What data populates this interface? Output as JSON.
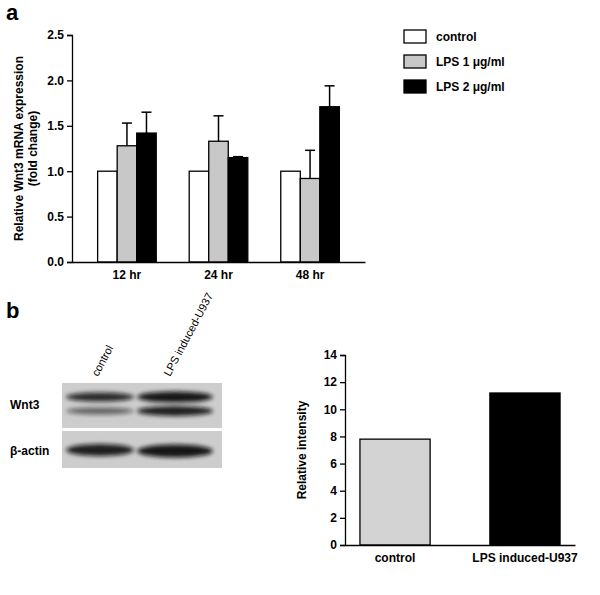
{
  "chart_data": [
    {
      "type": "bar",
      "title": "a",
      "y_label": [
        "Relative Wnt3 mRNA expression",
        "(fold change)"
      ],
      "categories": [
        "12 hr",
        "24 hr",
        "48 hr"
      ],
      "series": [
        {
          "name": "control",
          "color": "#ffffff",
          "values": [
            1,
            1,
            1
          ]
        },
        {
          "name": "LPS 1 μg/ml",
          "color": "#c8c8c8",
          "values": [
            1.28,
            1.33,
            0.92
          ],
          "errors": [
            0.25,
            0.28,
            0.31
          ]
        },
        {
          "name": "LPS 2 μg/ml",
          "color": "#000000",
          "values": [
            1.42,
            1.15,
            1.71
          ],
          "errors": [
            0.23,
            0.01,
            0.23
          ]
        }
      ],
      "ylim": [
        0,
        2.5
      ],
      "yticks": [
        {
          "value": 0,
          "label": "0.0"
        },
        {
          "value": 0.5,
          "label": "0.5"
        },
        {
          "value": 1,
          "label": "1.0"
        },
        {
          "value": 1.5,
          "label": "1.5"
        },
        {
          "value": 2,
          "label": "2.0"
        },
        {
          "value": 2.5,
          "label": "2.5"
        }
      ],
      "legend": "right",
      "grid": false
    },
    {
      "type": "bar",
      "title": "b",
      "y_label": "Relative intensity",
      "categories": [
        "control",
        "LPS induced-U937"
      ],
      "values": [
        7.8,
        11.2
      ],
      "colors": [
        "#d3d3d3",
        "#000000"
      ],
      "ylim": [
        0,
        14
      ],
      "yticks": [
        0,
        2,
        4,
        6,
        8,
        10,
        12,
        14
      ],
      "grid": false,
      "annotations": {
        "lanes": [
          "control",
          "LPS induced-U937"
        ],
        "bands": [
          "Wnt3",
          "β-actin"
        ]
      }
    }
  ]
}
